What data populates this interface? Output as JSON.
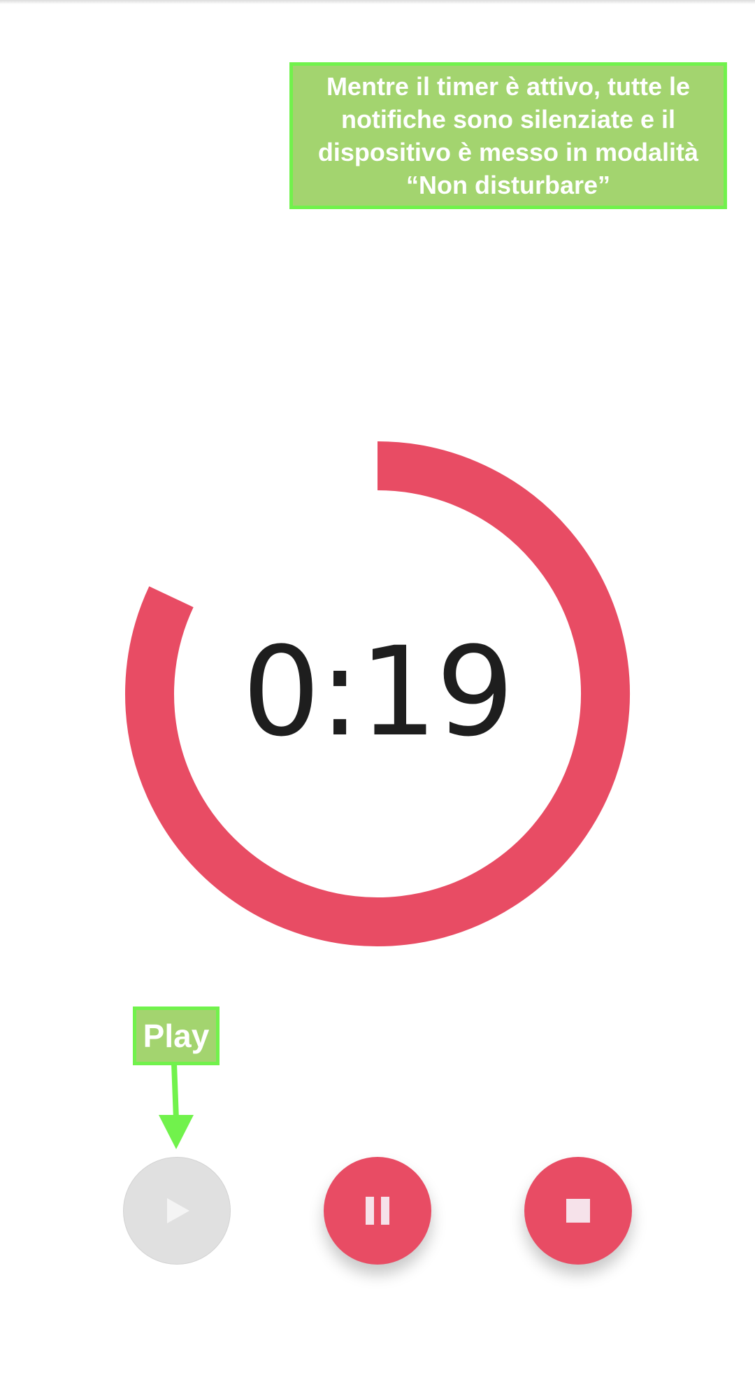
{
  "annotation": {
    "text": "Mentre il timer è attivo, tutte le notifiche sono silenziate e il dispositivo è messo in modalità “Non disturbare”"
  },
  "timer": {
    "display": "0:19",
    "remaining_fraction": 0.82
  },
  "tooltip": {
    "play_label": "Play"
  },
  "controls": {
    "play": {
      "icon": "play-icon",
      "enabled": false
    },
    "pause": {
      "icon": "pause-icon",
      "enabled": true
    },
    "stop": {
      "icon": "stop-icon",
      "enabled": true
    }
  },
  "colors": {
    "accent": "#e84c64",
    "disabled": "#e0e0e0",
    "annotation_fill": "#a3d46f",
    "annotation_border": "#71f24c",
    "text": "#1e1e1e"
  }
}
